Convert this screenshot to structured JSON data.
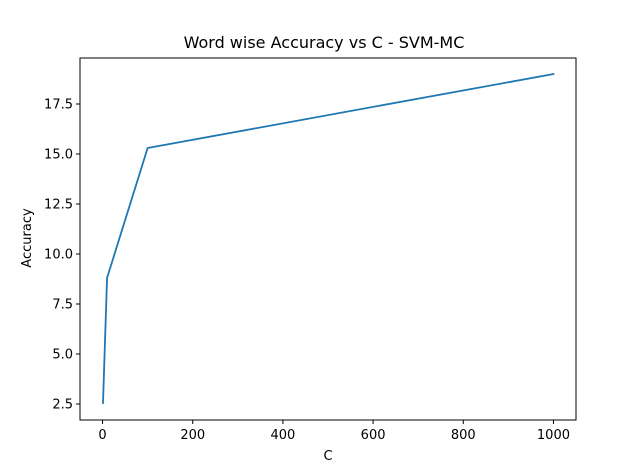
{
  "chart_data": {
    "type": "line",
    "title": "Word wise Accuracy vs C - SVM-MC",
    "xlabel": "C",
    "ylabel": "Accuracy",
    "xlim": [
      -50,
      1050
    ],
    "ylim": [
      1.7,
      19.8
    ],
    "xticks": [
      0,
      200,
      400,
      600,
      800,
      1000
    ],
    "xtick_labels": [
      "0",
      "200",
      "400",
      "600",
      "800",
      "1000"
    ],
    "yticks": [
      2.5,
      5.0,
      7.5,
      10.0,
      12.5,
      15.0,
      17.5
    ],
    "ytick_labels": [
      "2.5",
      "5.0",
      "7.5",
      "10.0",
      "12.5",
      "15.0",
      "17.5"
    ],
    "grid": false,
    "series": [
      {
        "color": "#1f77b4",
        "x": [
          1,
          10,
          100,
          1000
        ],
        "y": [
          2.55,
          8.8,
          15.3,
          19.0
        ]
      }
    ]
  }
}
